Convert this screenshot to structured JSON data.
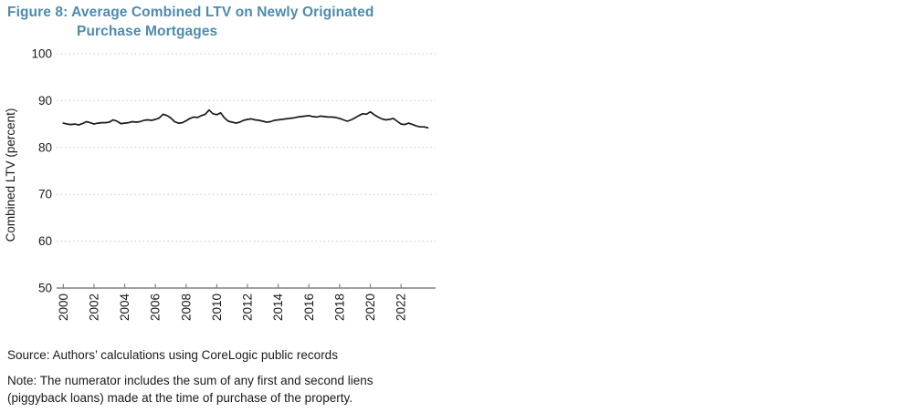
{
  "figure": {
    "title_line1": "Figure 8: Average Combined LTV on Newly Originated",
    "title_line2": "Purchase Mortgages",
    "title_color": "#4e8bad",
    "source": "Source: Authors’ calculations using CoreLogic public records",
    "note_line1": "Note: The numerator includes the sum of any first and second liens",
    "note_line2": "(piggyback loans) made at the time of purchase of the property."
  },
  "chart_data": {
    "type": "line",
    "title": "Average Combined LTV on Newly Originated Purchase Mortgages",
    "xlabel": "",
    "ylabel": "Combined LTV (percent)",
    "ylim": [
      50,
      100
    ],
    "xlim": [
      2000,
      2023.75
    ],
    "y_ticks": [
      100,
      90,
      80,
      70,
      60,
      50
    ],
    "x_ticks": [
      2000,
      2002,
      2004,
      2006,
      2008,
      2010,
      2012,
      2014,
      2016,
      2018,
      2020,
      2022
    ],
    "grid": "horizontal-dotted",
    "legend": "none",
    "line_color": "#1a1a1a",
    "grid_color": "#c9c9c9",
    "axis_color": "#808080",
    "series": [
      {
        "name": "Average combined LTV on newly originated purchase mortgages (percent)",
        "x": [
          2000.0,
          2000.25,
          2000.5,
          2000.75,
          2001.0,
          2001.25,
          2001.5,
          2001.75,
          2002.0,
          2002.25,
          2002.5,
          2002.75,
          2003.0,
          2003.25,
          2003.5,
          2003.75,
          2004.0,
          2004.25,
          2004.5,
          2004.75,
          2005.0,
          2005.25,
          2005.5,
          2005.75,
          2006.0,
          2006.25,
          2006.5,
          2006.75,
          2007.0,
          2007.25,
          2007.5,
          2007.75,
          2008.0,
          2008.25,
          2008.5,
          2008.75,
          2009.0,
          2009.25,
          2009.5,
          2009.75,
          2010.0,
          2010.25,
          2010.5,
          2010.75,
          2011.0,
          2011.25,
          2011.5,
          2011.75,
          2012.0,
          2012.25,
          2012.5,
          2012.75,
          2013.0,
          2013.25,
          2013.5,
          2013.75,
          2014.0,
          2014.25,
          2014.5,
          2014.75,
          2015.0,
          2015.25,
          2015.5,
          2015.75,
          2016.0,
          2016.25,
          2016.5,
          2016.75,
          2017.0,
          2017.25,
          2017.5,
          2017.75,
          2018.0,
          2018.25,
          2018.5,
          2018.75,
          2019.0,
          2019.25,
          2019.5,
          2019.75,
          2020.0,
          2020.25,
          2020.5,
          2020.75,
          2021.0,
          2021.25,
          2021.5,
          2021.75,
          2022.0,
          2022.25,
          2022.5,
          2022.75,
          2023.0,
          2023.25,
          2023.5,
          2023.75
        ],
        "y": [
          85.2,
          85.0,
          84.9,
          85.0,
          84.8,
          85.1,
          85.5,
          85.3,
          85.0,
          85.2,
          85.3,
          85.3,
          85.4,
          85.9,
          85.6,
          85.1,
          85.2,
          85.3,
          85.5,
          85.4,
          85.5,
          85.8,
          85.9,
          85.8,
          86.0,
          86.3,
          87.1,
          86.8,
          86.3,
          85.5,
          85.2,
          85.3,
          85.7,
          86.2,
          86.5,
          86.4,
          86.8,
          87.1,
          88.0,
          87.2,
          87.0,
          87.4,
          86.3,
          85.6,
          85.4,
          85.2,
          85.4,
          85.8,
          86.0,
          86.1,
          85.9,
          85.8,
          85.6,
          85.4,
          85.5,
          85.8,
          85.9,
          86.0,
          86.1,
          86.2,
          86.3,
          86.5,
          86.6,
          86.7,
          86.8,
          86.6,
          86.5,
          86.7,
          86.6,
          86.5,
          86.5,
          86.4,
          86.2,
          85.9,
          85.6,
          85.9,
          86.3,
          86.8,
          87.2,
          87.1,
          87.6,
          87.0,
          86.5,
          86.1,
          85.9,
          86.0,
          86.2,
          85.6,
          85.0,
          84.9,
          85.2,
          84.9,
          84.6,
          84.4,
          84.4,
          84.2
        ]
      }
    ]
  }
}
